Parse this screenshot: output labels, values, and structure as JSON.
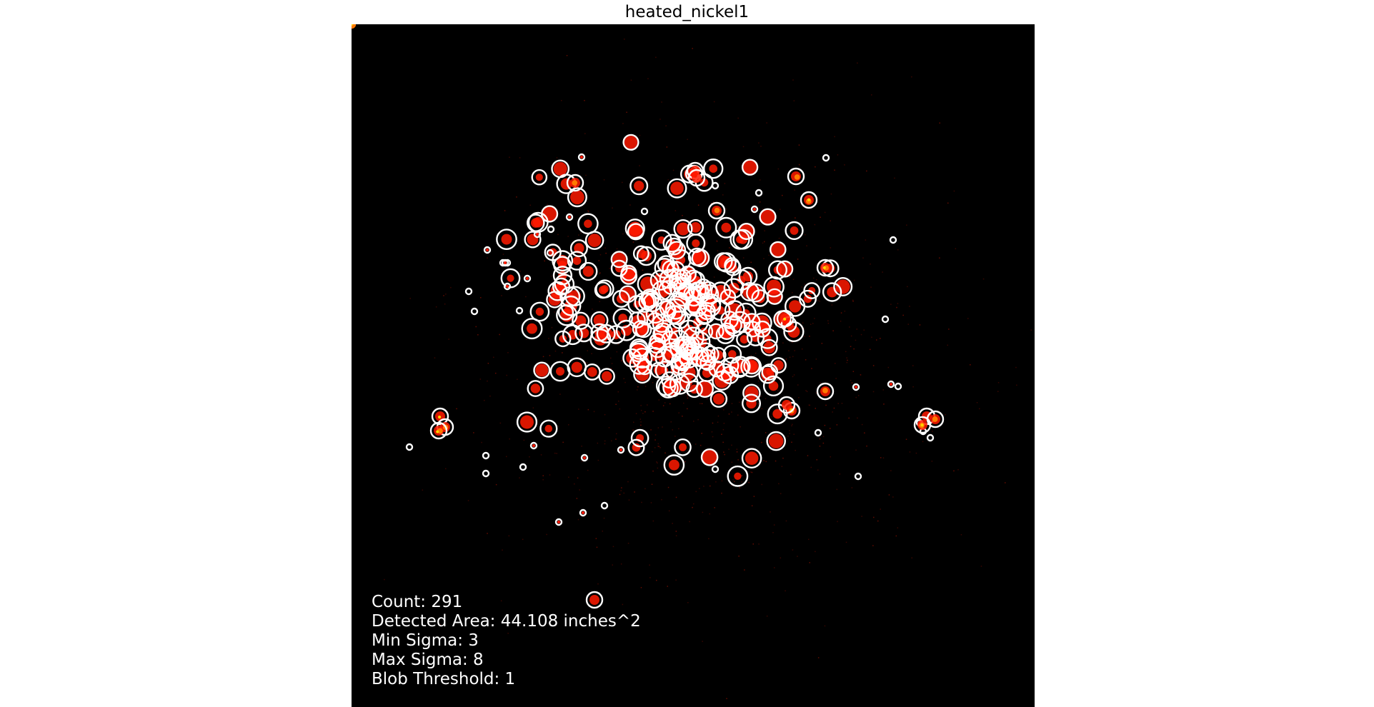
{
  "figure": {
    "title": "heated_nickel1"
  },
  "stats": {
    "count": "Count: 291",
    "area": "Detected Area: 44.108 inches^2",
    "min_sigma": "Min Sigma: 3",
    "max_sigma": "Max Sigma: 8",
    "blob_threshold": "Blob Threshold: 1"
  },
  "colors": {
    "background": "#000000",
    "blob_ring": "#ffffff",
    "heat_red": "#ff1a00",
    "heat_orange": "#ff7a00",
    "heat_yellow": "#ffd400"
  }
}
